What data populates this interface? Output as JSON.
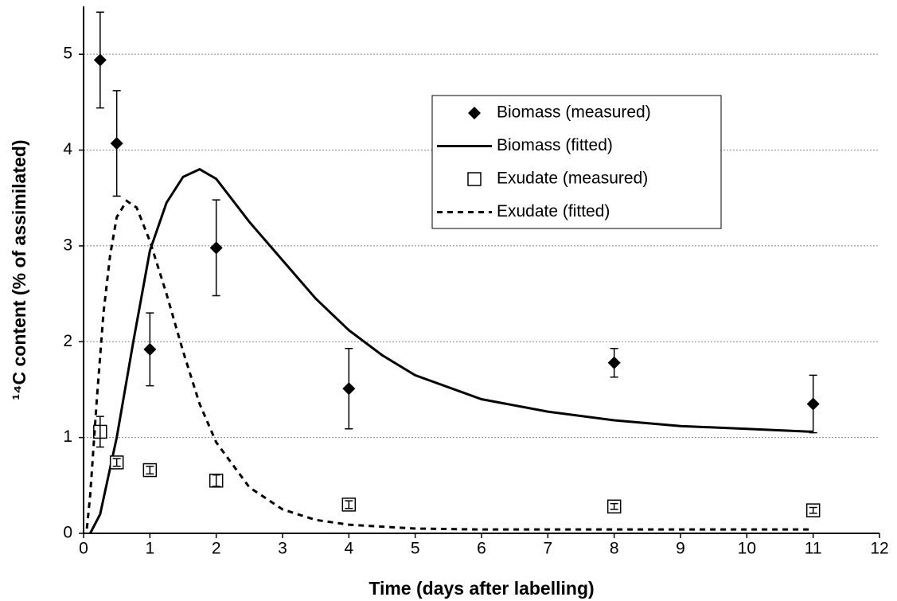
{
  "chart_data": {
    "type": "scatter",
    "x_label": "Time (days after labelling)",
    "y_label": "¹⁴C content (% of assimilated)",
    "xlim": [
      0,
      12
    ],
    "xticks": [
      0,
      1,
      2,
      3,
      4,
      5,
      6,
      7,
      8,
      9,
      10,
      11,
      12
    ],
    "ylim": [
      0,
      5.5
    ],
    "yticks": [
      0,
      1,
      2,
      3,
      4,
      5
    ],
    "grid": true,
    "series": [
      {
        "name": "Biomass (measured)",
        "style": "markers",
        "marker": "diamond",
        "color": "#000000",
        "x": [
          0.25,
          0.5,
          1,
          2,
          4,
          8,
          11
        ],
        "values": [
          4.94,
          4.07,
          1.92,
          2.98,
          1.51,
          1.78,
          1.35
        ],
        "errors": [
          0.5,
          0.55,
          0.38,
          0.5,
          0.42,
          0.15,
          0.3
        ]
      },
      {
        "name": "Biomass (fitted)",
        "style": "line",
        "dash": "solid",
        "color": "#000000",
        "x": [
          0.1,
          0.25,
          0.5,
          0.75,
          1,
          1.25,
          1.5,
          1.75,
          2,
          2.5,
          3,
          3.5,
          4,
          4.5,
          5,
          6,
          7,
          8,
          9,
          10,
          11
        ],
        "values": [
          0,
          0.2,
          1.0,
          2.0,
          2.95,
          3.45,
          3.72,
          3.8,
          3.7,
          3.25,
          2.85,
          2.45,
          2.12,
          1.86,
          1.65,
          1.4,
          1.27,
          1.18,
          1.12,
          1.09,
          1.06
        ]
      },
      {
        "name": "Exudate (measured)",
        "style": "markers",
        "marker": "square",
        "color": "#000000",
        "x": [
          0.25,
          0.5,
          1,
          2,
          4,
          8,
          11
        ],
        "values": [
          1.06,
          0.74,
          0.66,
          0.55,
          0.3,
          0.28,
          0.24
        ],
        "errors": [
          0.16,
          0.04,
          0.04,
          0.06,
          0.04,
          0.03,
          0.03
        ]
      },
      {
        "name": "Exudate (fitted)",
        "style": "line",
        "dash": "dashed",
        "color": "#000000",
        "x": [
          0.05,
          0.1,
          0.2,
          0.3,
          0.4,
          0.5,
          0.65,
          0.8,
          1,
          1.25,
          1.5,
          1.75,
          2,
          2.5,
          3,
          3.5,
          4,
          5,
          6,
          8,
          11
        ],
        "values": [
          0.05,
          0.4,
          1.4,
          2.3,
          2.9,
          3.3,
          3.47,
          3.4,
          3.05,
          2.5,
          1.9,
          1.35,
          0.95,
          0.48,
          0.25,
          0.14,
          0.09,
          0.05,
          0.04,
          0.04,
          0.04
        ]
      }
    ]
  }
}
